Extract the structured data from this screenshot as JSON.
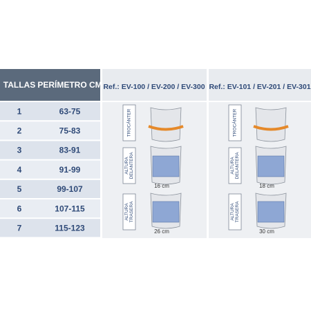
{
  "header": {
    "columns": [
      "TALLAS",
      "PERÍMETRO CM"
    ],
    "refs": [
      "Ref.: EV-100 / EV-200 / EV-300",
      "Ref.: EV-101 / EV-201 / EV-301"
    ]
  },
  "table": {
    "rows": [
      [
        "1",
        "63-75"
      ],
      [
        "2",
        "75-83"
      ],
      [
        "3",
        "83-91"
      ],
      [
        "4",
        "91-99"
      ],
      [
        "5",
        "99-107"
      ],
      [
        "6",
        "107-115"
      ],
      [
        "7",
        "115-123"
      ]
    ]
  },
  "figures": {
    "trochanter": "TROCÁNTER",
    "front": [
      "ALTURA",
      "DELANTERA"
    ],
    "back": [
      "ALTURA",
      "TRASERA"
    ],
    "front_heights": [
      "16 cm",
      "18 cm"
    ],
    "back_heights": [
      "26 cm",
      "30 cm"
    ]
  }
}
